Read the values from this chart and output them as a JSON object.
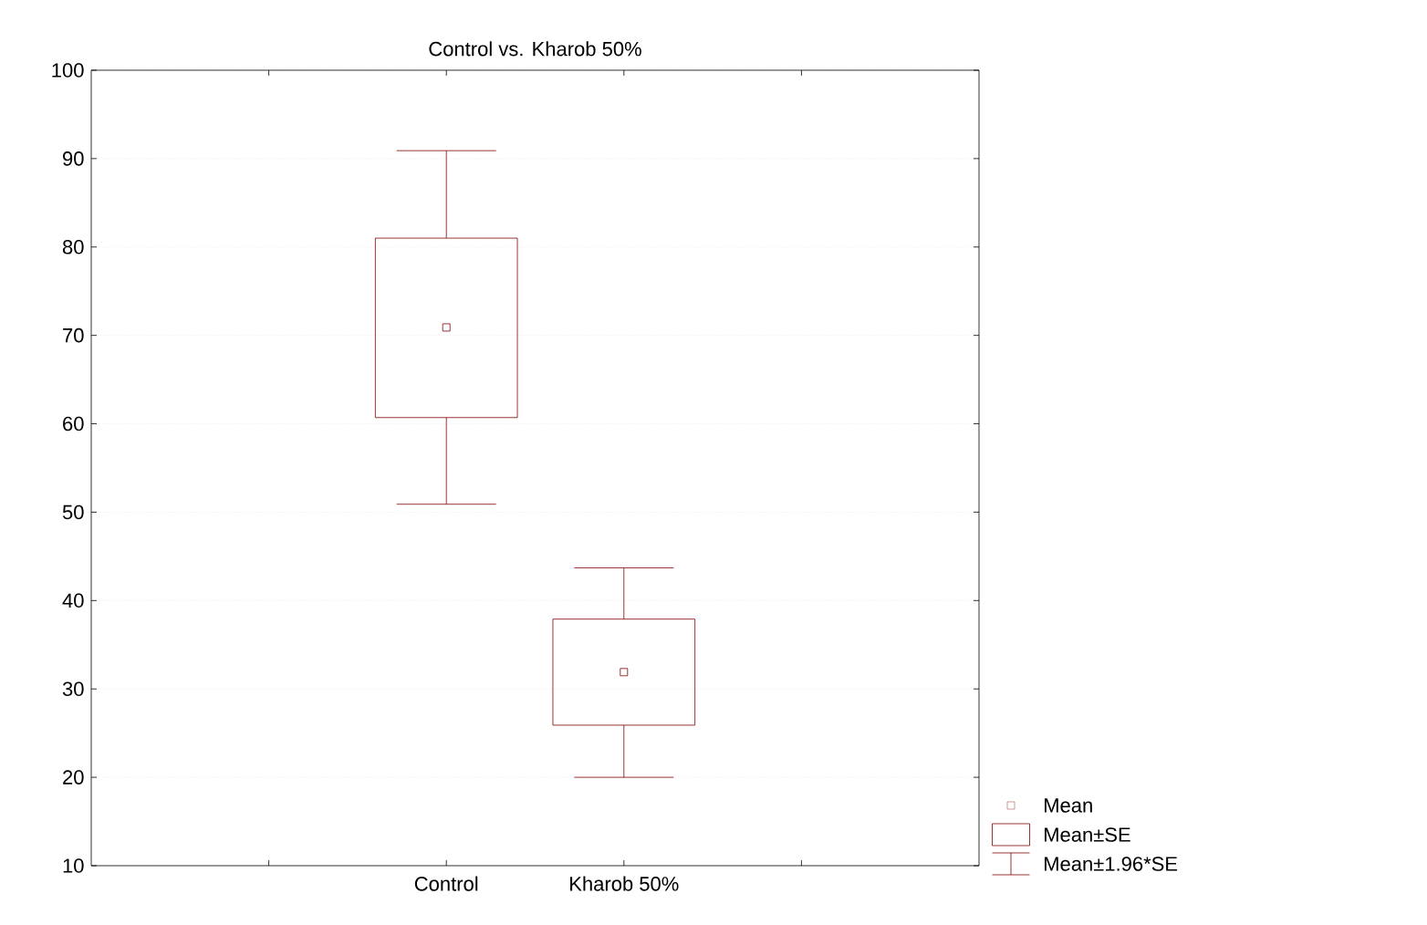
{
  "chart_data": {
    "type": "box",
    "title": "Control  vs. Kharob 50%",
    "categories": [
      "Control",
      "Kharob 50%"
    ],
    "boxes": [
      {
        "low": 50.9,
        "q1": 60.7,
        "q3": 81.0,
        "high": 90.9,
        "mean": 70.9
      },
      {
        "low": 20.0,
        "q1": 25.9,
        "q3": 37.9,
        "high": 43.7,
        "mean": 31.9
      }
    ],
    "color": "#800000",
    "marker": "square",
    "ylim": [
      10,
      100
    ],
    "yticks": [
      10,
      20,
      30,
      40,
      50,
      60,
      70,
      80,
      90,
      100
    ],
    "grid": "y",
    "annotations": [
      "Mean",
      "Mean±SE",
      "Mean±1.96*SE"
    ]
  }
}
